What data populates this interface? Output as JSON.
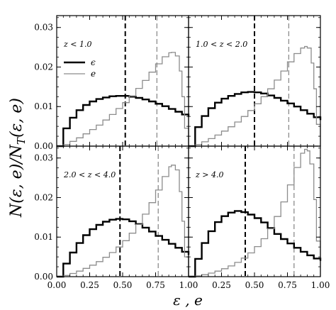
{
  "figure": {
    "ylabel": "N(ε, e)/N_T(ε, e)",
    "xlabel": "ε , e",
    "legend": [
      {
        "symbol": "ϵ",
        "color": "#000000",
        "series": "eps"
      },
      {
        "symbol": "e",
        "color": "#8c8c8c",
        "series": "e"
      }
    ]
  },
  "chart_data": [
    {
      "type": "line",
      "panel": "top-left",
      "label": "z < 1.0",
      "xlim": [
        0,
        1
      ],
      "ylim": [
        0,
        0.033
      ],
      "xticks": [
        "0.00",
        "0.25",
        "0.50",
        "0.75",
        "1.00"
      ],
      "yticks": [
        "0.00",
        "0.01",
        "0.02",
        "0.03"
      ],
      "legend_position": "upper-left",
      "series": [
        {
          "name": "ϵ",
          "color": "#000000",
          "x": [
            0.0,
            0.05,
            0.1,
            0.15,
            0.2,
            0.25,
            0.3,
            0.35,
            0.4,
            0.45,
            0.5,
            0.55,
            0.6,
            0.65,
            0.7,
            0.75,
            0.8,
            0.85,
            0.9,
            0.95,
            1.0
          ],
          "y": [
            0.0,
            0.0045,
            0.0072,
            0.0091,
            0.0104,
            0.0113,
            0.0119,
            0.0123,
            0.0126,
            0.0127,
            0.0127,
            0.0125,
            0.0122,
            0.0118,
            0.0113,
            0.0107,
            0.0101,
            0.0094,
            0.0087,
            0.008,
            0.0075
          ]
        },
        {
          "name": "e",
          "color": "#8c8c8c",
          "x": [
            0.0,
            0.05,
            0.1,
            0.15,
            0.2,
            0.25,
            0.3,
            0.35,
            0.4,
            0.45,
            0.5,
            0.55,
            0.6,
            0.65,
            0.7,
            0.75,
            0.8,
            0.85,
            0.87,
            0.9,
            0.93,
            0.95,
            0.97,
            1.0
          ],
          "y": [
            0.0,
            0.0004,
            0.0012,
            0.0021,
            0.0031,
            0.0042,
            0.0053,
            0.0066,
            0.008,
            0.0095,
            0.011,
            0.0127,
            0.0146,
            0.0166,
            0.0187,
            0.0208,
            0.0226,
            0.0236,
            0.0237,
            0.0228,
            0.019,
            0.0125,
            0.0045,
            0.0
          ]
        }
      ],
      "vlines": [
        {
          "x": 0.52,
          "color": "#000000",
          "style": "dashed"
        },
        {
          "x": 0.76,
          "color": "#8c8c8c",
          "style": "dashed"
        }
      ]
    },
    {
      "type": "line",
      "panel": "top-right",
      "label": "1.0 < z < 2.0",
      "xlim": [
        0,
        1
      ],
      "ylim": [
        0,
        0.033
      ],
      "series": [
        {
          "name": "ϵ",
          "color": "#000000",
          "x": [
            0.0,
            0.05,
            0.1,
            0.15,
            0.2,
            0.25,
            0.3,
            0.35,
            0.4,
            0.45,
            0.5,
            0.55,
            0.6,
            0.65,
            0.7,
            0.75,
            0.8,
            0.85,
            0.9,
            0.95,
            1.0
          ],
          "y": [
            0.0,
            0.0048,
            0.0076,
            0.0096,
            0.011,
            0.012,
            0.0127,
            0.0132,
            0.0136,
            0.0137,
            0.0136,
            0.0133,
            0.0128,
            0.0122,
            0.0115,
            0.0108,
            0.01,
            0.0091,
            0.0082,
            0.0073,
            0.0066
          ]
        },
        {
          "name": "e",
          "color": "#8c8c8c",
          "x": [
            0.0,
            0.05,
            0.1,
            0.15,
            0.2,
            0.25,
            0.3,
            0.35,
            0.4,
            0.45,
            0.5,
            0.55,
            0.6,
            0.65,
            0.7,
            0.75,
            0.8,
            0.85,
            0.88,
            0.9,
            0.93,
            0.95,
            0.97,
            1.0
          ],
          "y": [
            0.0,
            0.0004,
            0.0011,
            0.0019,
            0.0028,
            0.0038,
            0.0049,
            0.0061,
            0.0075,
            0.009,
            0.0107,
            0.0125,
            0.0145,
            0.0167,
            0.019,
            0.0213,
            0.0234,
            0.0248,
            0.0252,
            0.0248,
            0.021,
            0.0145,
            0.0055,
            0.0
          ]
        }
      ],
      "vlines": [
        {
          "x": 0.5,
          "color": "#000000",
          "style": "dashed"
        },
        {
          "x": 0.76,
          "color": "#8c8c8c",
          "style": "dashed"
        }
      ]
    },
    {
      "type": "line",
      "panel": "bottom-left",
      "label": "2.0 < z < 4.0",
      "xlim": [
        0,
        1
      ],
      "ylim": [
        0,
        0.033
      ],
      "series": [
        {
          "name": "ϵ",
          "color": "#000000",
          "x": [
            0.0,
            0.05,
            0.1,
            0.15,
            0.2,
            0.25,
            0.3,
            0.35,
            0.4,
            0.45,
            0.5,
            0.55,
            0.6,
            0.65,
            0.7,
            0.75,
            0.8,
            0.85,
            0.9,
            0.95,
            1.0
          ],
          "y": [
            0.0,
            0.0033,
            0.0061,
            0.0085,
            0.0105,
            0.012,
            0.0131,
            0.0139,
            0.0144,
            0.0146,
            0.0145,
            0.014,
            0.0133,
            0.0124,
            0.0114,
            0.0103,
            0.0093,
            0.0083,
            0.0073,
            0.0063,
            0.0055
          ]
        },
        {
          "name": "e",
          "color": "#8c8c8c",
          "x": [
            0.0,
            0.05,
            0.1,
            0.15,
            0.2,
            0.25,
            0.3,
            0.35,
            0.4,
            0.45,
            0.5,
            0.55,
            0.6,
            0.65,
            0.7,
            0.75,
            0.8,
            0.85,
            0.87,
            0.9,
            0.93,
            0.95,
            0.97,
            1.0
          ],
          "y": [
            0.0,
            0.0003,
            0.0008,
            0.0014,
            0.0021,
            0.0029,
            0.0038,
            0.0049,
            0.0061,
            0.0075,
            0.0091,
            0.011,
            0.0132,
            0.0158,
            0.0187,
            0.0219,
            0.0253,
            0.0278,
            0.0282,
            0.027,
            0.0215,
            0.014,
            0.005,
            0.0
          ]
        }
      ],
      "vlines": [
        {
          "x": 0.48,
          "color": "#000000",
          "style": "dashed"
        },
        {
          "x": 0.77,
          "color": "#8c8c8c",
          "style": "dashed"
        }
      ]
    },
    {
      "type": "line",
      "panel": "bottom-right",
      "label": "z > 4.0",
      "xlim": [
        0,
        1
      ],
      "ylim": [
        0,
        0.033
      ],
      "series": [
        {
          "name": "ϵ",
          "color": "#000000",
          "x": [
            0.0,
            0.05,
            0.1,
            0.15,
            0.2,
            0.25,
            0.3,
            0.35,
            0.4,
            0.45,
            0.5,
            0.55,
            0.6,
            0.65,
            0.7,
            0.75,
            0.8,
            0.85,
            0.9,
            0.95,
            1.0
          ],
          "y": [
            0.0,
            0.0045,
            0.0085,
            0.0115,
            0.0138,
            0.0153,
            0.0162,
            0.0166,
            0.0163,
            0.0157,
            0.0148,
            0.0137,
            0.0123,
            0.0108,
            0.0095,
            0.0084,
            0.0073,
            0.0063,
            0.0054,
            0.0046,
            0.004
          ]
        },
        {
          "name": "e",
          "color": "#8c8c8c",
          "x": [
            0.0,
            0.05,
            0.1,
            0.15,
            0.2,
            0.25,
            0.3,
            0.35,
            0.4,
            0.45,
            0.5,
            0.55,
            0.6,
            0.65,
            0.7,
            0.75,
            0.8,
            0.85,
            0.88,
            0.9,
            0.92,
            0.95,
            0.97,
            1.0
          ],
          "y": [
            0.0,
            0.0002,
            0.0005,
            0.0009,
            0.0014,
            0.002,
            0.0027,
            0.0036,
            0.0047,
            0.006,
            0.0076,
            0.0096,
            0.0121,
            0.0152,
            0.0189,
            0.0232,
            0.0276,
            0.0312,
            0.0322,
            0.0318,
            0.0285,
            0.0195,
            0.009,
            0.0
          ]
        }
      ],
      "vlines": [
        {
          "x": 0.43,
          "color": "#000000",
          "style": "dashed"
        },
        {
          "x": 0.8,
          "color": "#8c8c8c",
          "style": "dashed"
        }
      ]
    }
  ]
}
